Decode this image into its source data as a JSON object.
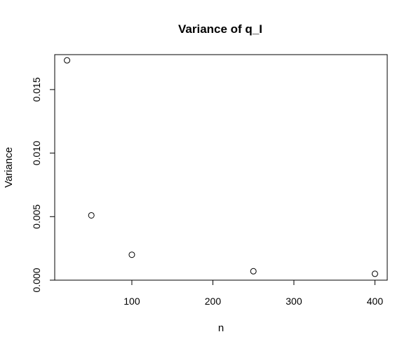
{
  "chart_data": {
    "type": "scatter",
    "title": "Variance of q_I",
    "xlabel": "n",
    "ylabel": "Variance",
    "x": [
      20,
      50,
      100,
      250,
      400
    ],
    "y": [
      0.0173,
      0.0051,
      0.002,
      0.0007,
      0.0005
    ],
    "xlim": [
      4.8,
      415.2
    ],
    "ylim": [
      0.0,
      0.01775
    ],
    "x_ticks": [
      100,
      200,
      300,
      400
    ],
    "x_tick_labels": [
      "100",
      "200",
      "300",
      "400"
    ],
    "y_ticks": [
      0.0,
      0.005,
      0.01,
      0.015
    ],
    "y_tick_labels": [
      "0.000",
      "0.005",
      "0.010",
      "0.015"
    ],
    "marker": "open-circle",
    "grid": false,
    "legend": false
  }
}
